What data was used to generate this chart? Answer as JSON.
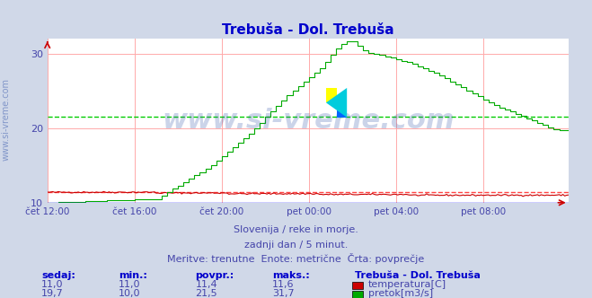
{
  "title": "Trebuša - Dol. Trebuša",
  "title_color": "#0000cc",
  "bg_color": "#d0d8e8",
  "plot_bg_color": "#ffffff",
  "grid_color": "#ffaaaa",
  "xlabel_color": "#4444aa",
  "text_color": "#4444aa",
  "watermark": "www.si-vreme.com",
  "watermark_color": "#3355aa",
  "watermark_alpha": 0.25,
  "subtitle1": "Slovenija / reke in morje.",
  "subtitle2": "zadnji dan / 5 minut.",
  "subtitle3": "Meritve: trenutne  Enote: metrične  Črta: povprečje",
  "xticklabels": [
    "čet 12:00",
    "čet 16:00",
    "čet 20:00",
    "pet 00:00",
    "pet 04:00",
    "pet 08:00"
  ],
  "xtick_positions": [
    0,
    48,
    96,
    144,
    192,
    240
  ],
  "total_points": 288,
  "ylim_temp": [
    10,
    32
  ],
  "ylim_flow": [
    10,
    32
  ],
  "yticks": [
    10,
    20,
    30
  ],
  "avg_temp": 11.4,
  "avg_flow": 21.5,
  "temp_color": "#cc0000",
  "flow_color": "#00aa00",
  "avg_line_color_temp": "#ff4444",
  "avg_line_color_flow": "#00cc00",
  "legend_title": "Trebuša - Dol. Trebuša",
  "legend_temp_label": "temperatura[C]",
  "legend_flow_label": "pretok[m3/s]",
  "table_headers": [
    "sedaj:",
    "min.:",
    "povpr.:",
    "maks.:"
  ],
  "table_temp": [
    "11,0",
    "11,0",
    "11,4",
    "11,6"
  ],
  "table_flow": [
    "19,7",
    "10,0",
    "21,5",
    "31,7"
  ],
  "x_arrow_color": "#cc0000",
  "y_arrow_color": "#cc0000"
}
